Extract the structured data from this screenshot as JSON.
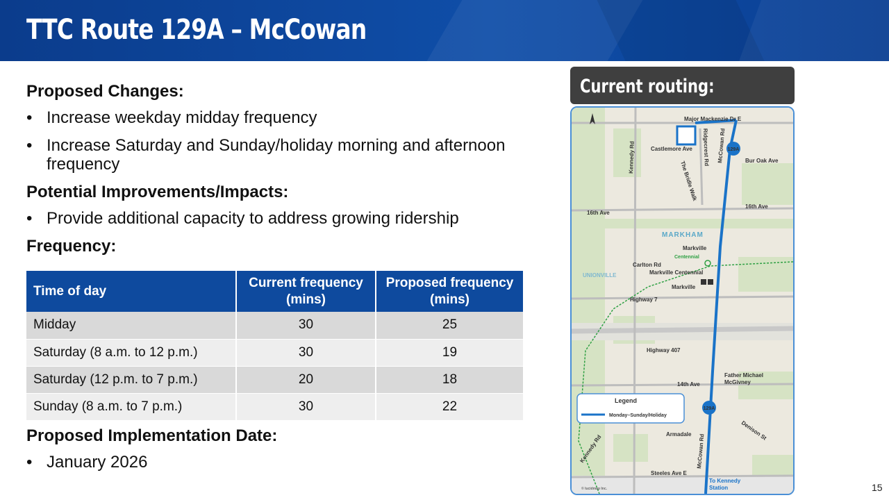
{
  "header": {
    "title": "TTC Route 129A – McCowan"
  },
  "sections": {
    "proposed_changes": {
      "heading": "Proposed Changes:",
      "items": [
        "Increase weekday midday frequency",
        "Increase Saturday and Sunday/holiday morning and afternoon frequency"
      ]
    },
    "improvements": {
      "heading": "Potential Improvements/Impacts:",
      "items": [
        "Provide additional capacity to address growing ridership"
      ]
    },
    "frequency": {
      "heading": "Frequency:"
    },
    "implementation": {
      "heading": "Proposed Implementation Date:",
      "items": [
        "January 2026"
      ]
    }
  },
  "bullet_char": "•",
  "table": {
    "headers": [
      "Time of day",
      "Current frequency (mins)",
      "Proposed frequency (mins)"
    ],
    "rows": [
      {
        "time": "Midday",
        "current": "30",
        "proposed": "25"
      },
      {
        "time": "Saturday (8 a.m. to 12 p.m.)",
        "current": "30",
        "proposed": "19"
      },
      {
        "time": "Saturday  (12 p.m. to 7 p.m.)",
        "current": "20",
        "proposed": "18"
      },
      {
        "time": "Sunday  (8 a.m. to 7 p.m.)",
        "current": "30",
        "proposed": "22"
      }
    ]
  },
  "map": {
    "panel_label": "Current routing:",
    "streets": {
      "major_mackenzie": "Major Mackenzie Dr E",
      "castlemore": "Castlemore Ave",
      "ridgecrest": "Ridgecrest Rd",
      "bur_oak": "Bur Oak Ave",
      "bridle_walk": "The Bridle Walk",
      "kennedy_north": "Kennedy Rd",
      "mccowan_north": "McCowan Rd",
      "sixteenth_west": "16th Ave",
      "sixteenth_east": "16th Ave",
      "carlton": "Carlton Rd",
      "highway7": "Highway 7",
      "highway407": "Highway 407",
      "fourteenth": "14th Ave",
      "denison": "Denison St",
      "kennedy_south": "Kennedy Rd",
      "mccowan_south": "McCowan Rd",
      "steeles": "Steeles Ave E"
    },
    "places": {
      "markham": "MARKHAM",
      "unionville": "UNIONVILLE",
      "markville_station": "Markville",
      "centennial_go": "Centennial",
      "markville_centennial": "Markville Centennial",
      "markville_mall": "Markville",
      "father_michael_1": "Father Michael",
      "father_michael_2": "McGivney",
      "armadale": "Armadale",
      "to_kennedy_1": "To Kennedy",
      "to_kennedy_2": "Station",
      "copyright": "© lucidmap Inc."
    },
    "route_badge": "129A",
    "legend": {
      "title": "Legend",
      "item": "Monday–Sunday/Holiday"
    },
    "colors": {
      "route": "#1a73c8",
      "go_line": "#2ea043"
    }
  },
  "page_number": "15"
}
